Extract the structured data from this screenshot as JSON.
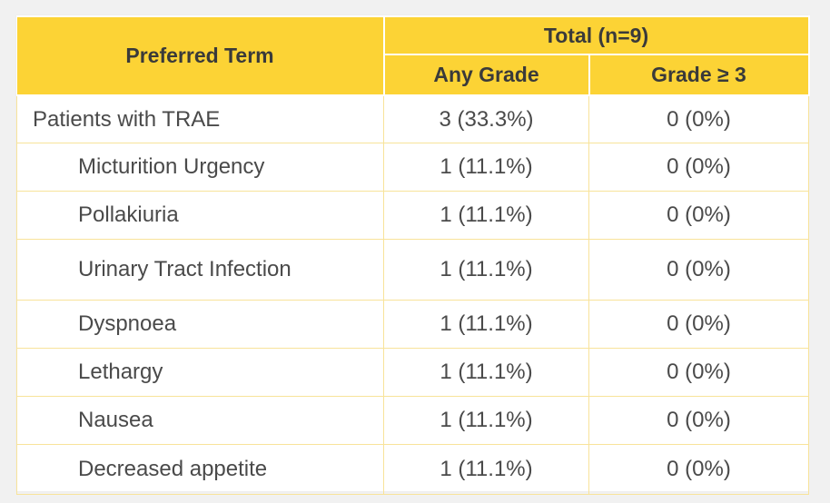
{
  "header": {
    "preferred_term": "Preferred Term",
    "total": "Total (n=9)",
    "any_grade": "Any Grade",
    "grade_3": "Grade ≥ 3"
  },
  "rows": [
    {
      "term": "Patients with TRAE",
      "any": "3 (33.3%)",
      "g3": "0 (0%)"
    },
    {
      "term": "Micturition Urgency",
      "any": "1 (11.1%)",
      "g3": "0 (0%)"
    },
    {
      "term": "Pollakiuria",
      "any": "1 (11.1%)",
      "g3": "0 (0%)"
    },
    {
      "term": "Urinary Tract Infection",
      "any": "1 (11.1%)",
      "g3": "0 (0%)"
    },
    {
      "term": "Dyspnoea",
      "any": "1 (11.1%)",
      "g3": "0 (0%)"
    },
    {
      "term": "Lethargy",
      "any": "1 (11.1%)",
      "g3": "0 (0%)"
    },
    {
      "term": "Nausea",
      "any": "1 (11.1%)",
      "g3": "0 (0%)"
    },
    {
      "term": "Decreased appetite",
      "any": "1 (11.1%)",
      "g3": "0 (0%)"
    }
  ],
  "colors": {
    "header_bg": "#fcd335",
    "grid_line": "#f8e39a",
    "text": "#4a4a4a"
  }
}
